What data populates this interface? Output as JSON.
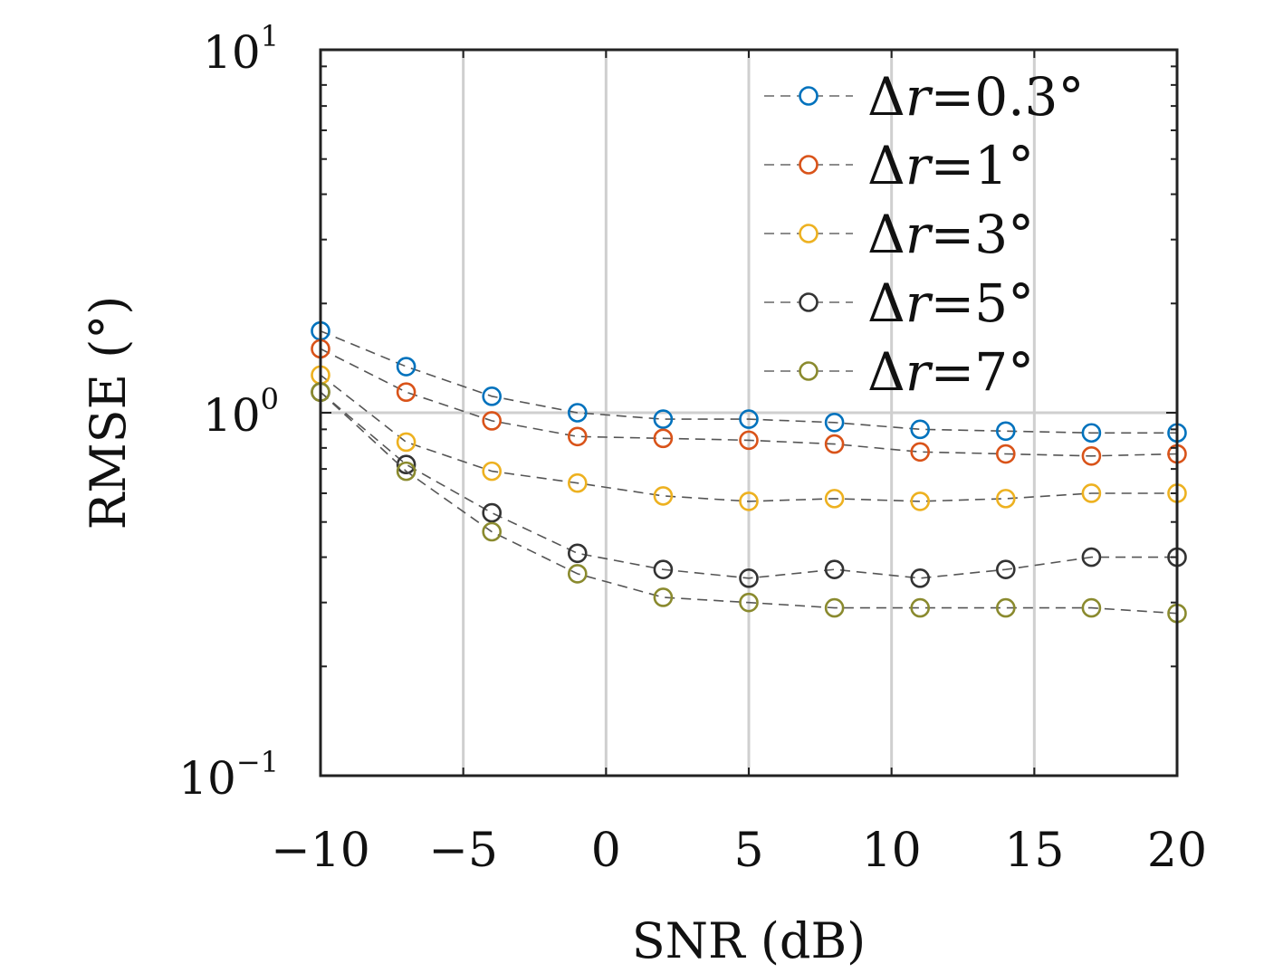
{
  "chart_data": {
    "type": "line",
    "xlabel": "SNR (dB)",
    "ylabel": "RMSE (°)",
    "xlim": [
      -10,
      20
    ],
    "ylim": [
      0.1,
      10
    ],
    "yscale": "log",
    "grid": "x-major-and-y-decade",
    "legend_position": "top-right",
    "x_ticks": [
      -10,
      -5,
      0,
      5,
      10,
      15,
      20
    ],
    "x_tick_labels": [
      "−10",
      "−5",
      "0",
      "5",
      "10",
      "15",
      "20"
    ],
    "y_ticks": [
      {
        "value": 10,
        "base": "10",
        "exp": "1"
      },
      {
        "value": 1,
        "base": "10",
        "exp": "0"
      },
      {
        "value": 0.1,
        "base": "10",
        "exp": "−1"
      }
    ],
    "x": [
      -10,
      -7,
      -4,
      -1,
      2,
      5,
      8,
      11,
      14,
      17,
      20
    ],
    "series": [
      {
        "name": "Δr=0.3°",
        "legend_var": "r",
        "legend_value": "=0.3°",
        "color": "#0072BD",
        "values": [
          1.68,
          1.34,
          1.11,
          1.0,
          0.96,
          0.96,
          0.94,
          0.9,
          0.89,
          0.88,
          0.88
        ]
      },
      {
        "name": "Δr=1°",
        "legend_var": "r",
        "legend_value": "=1°",
        "color": "#D95319",
        "values": [
          1.5,
          1.14,
          0.95,
          0.86,
          0.85,
          0.84,
          0.82,
          0.78,
          0.77,
          0.76,
          0.77
        ]
      },
      {
        "name": "Δr=3°",
        "legend_var": "r",
        "legend_value": "=3°",
        "color": "#EDB120",
        "values": [
          1.27,
          0.83,
          0.69,
          0.64,
          0.59,
          0.57,
          0.58,
          0.57,
          0.58,
          0.6,
          0.6
        ]
      },
      {
        "name": "Δr=5°",
        "legend_var": "r",
        "legend_value": "=5°",
        "color": "#333333",
        "values": [
          1.14,
          0.72,
          0.53,
          0.41,
          0.37,
          0.35,
          0.37,
          0.35,
          0.37,
          0.4,
          0.4
        ]
      },
      {
        "name": "Δr=7°",
        "legend_var": "r",
        "legend_value": "=7°",
        "color": "#8A8A2E",
        "values": [
          1.14,
          0.69,
          0.47,
          0.36,
          0.31,
          0.3,
          0.29,
          0.29,
          0.29,
          0.29,
          0.28
        ]
      }
    ]
  }
}
